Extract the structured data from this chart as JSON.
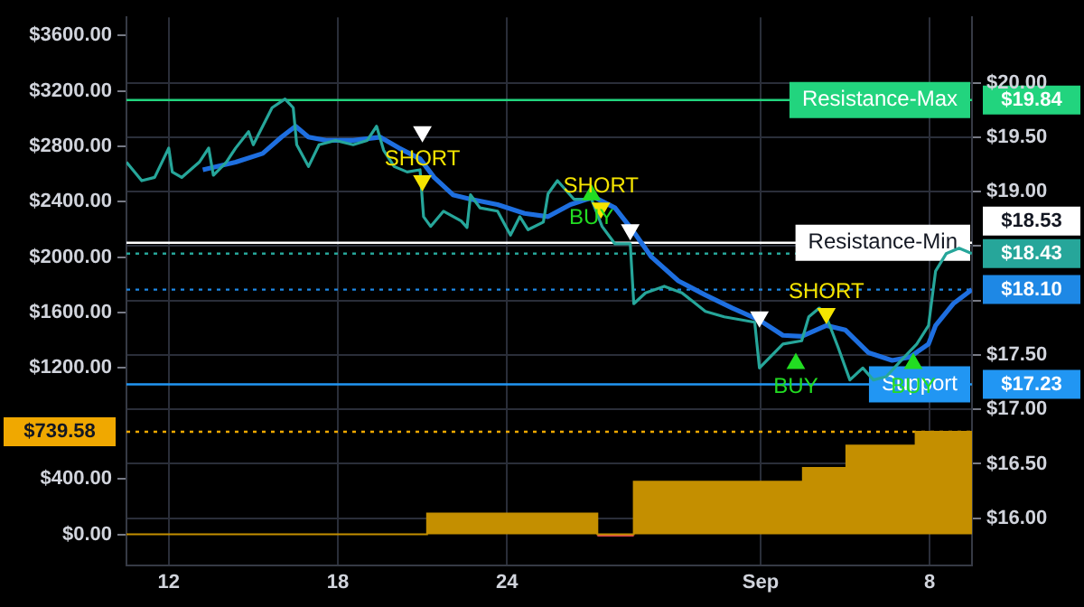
{
  "chart_data": {
    "type": "line",
    "xlim": [
      "--08-10T12:00",
      "--09-09T12:00"
    ],
    "xticks": [
      {
        "value": "--08-12",
        "label": "12"
      },
      {
        "value": "--08-18",
        "label": "18"
      },
      {
        "value": "--08-24",
        "label": "24"
      },
      {
        "value": "--09-02",
        "label": "Sep"
      },
      {
        "value": "--09-08",
        "label": "8"
      }
    ],
    "ylim": [
      -222,
      3730
    ],
    "yticks": [
      {
        "value": 0,
        "label": "$0.00"
      },
      {
        "value": 400,
        "label": "$400.00"
      },
      {
        "value": 1200,
        "label": "$1200.00"
      },
      {
        "value": 1600,
        "label": "$1600.00"
      },
      {
        "value": 2000,
        "label": "$2000.00"
      },
      {
        "value": 2400,
        "label": "$2400.00"
      },
      {
        "value": 2800,
        "label": "$2800.00"
      },
      {
        "value": 3200,
        "label": "$3200.00"
      },
      {
        "value": 3600,
        "label": "$3600.00"
      }
    ],
    "y2lim": [
      15.57,
      20.6
    ],
    "y2ticks": [
      {
        "value": 16,
        "label": "$16.00"
      },
      {
        "value": 16.5,
        "label": "$16.50"
      },
      {
        "value": 17,
        "label": "$17.00"
      },
      {
        "value": 17.5,
        "label": "$17.50"
      },
      {
        "value": 18,
        "label": null
      },
      {
        "value": 18.5,
        "label": null
      },
      {
        "value": 19,
        "label": "$19.00"
      },
      {
        "value": 19.5,
        "label": "$19.50"
      },
      {
        "value": 20,
        "label": "$20.00"
      }
    ],
    "grid": true,
    "legend": false,
    "ref_lines": [
      {
        "axis": "y2",
        "value": 19.84,
        "label": "$19.84",
        "color": "#22d47e"
      },
      {
        "axis": "y2",
        "value": 18.53,
        "label": "$18.53",
        "color": "#ffffff"
      },
      {
        "axis": "y2",
        "value": 18.43,
        "label": "$18.43",
        "color": "#26a69a",
        "line_style": "dotted"
      },
      {
        "axis": "y2",
        "value": 18.1,
        "label": "$18.10",
        "color": "#1e88e5",
        "line_style": "dotted"
      },
      {
        "axis": "y2",
        "value": 17.23,
        "label": "$17.23",
        "color": "#2196f3"
      },
      {
        "axis": "y",
        "value": 739.58,
        "label": "$739.58",
        "color": "#f0a800",
        "line_style": "dotted"
      }
    ],
    "annotations": [
      "Resistance-Max",
      "Resistance-Min",
      "Support"
    ],
    "series": [
      {
        "type": "area",
        "color": "#c48f00",
        "x": [
          "--08-10T12:00",
          "--08-21T04:00",
          "--08-21T04:00",
          "--08-27T05:00",
          "--08-27T05:00",
          "--08-28T12:00",
          "--08-28T12:00",
          "--09-03T12:00",
          "--09-03T12:00",
          "--09-05T01:00",
          "--09-05T01:00",
          "--09-07T12:00",
          "--09-07T12:00",
          "--09-09T12:00"
        ],
        "values": [
          0,
          0,
          150,
          150,
          0,
          0,
          380,
          380,
          480,
          480,
          640,
          640,
          740,
          740
        ]
      },
      {
        "type": "area",
        "color": "#e0474c",
        "x": [
          "--08-27T05:00",
          "--08-28T12:00"
        ],
        "values": [
          -10,
          -10
        ]
      },
      {
        "axis": "y2",
        "color": "#26a69a",
        "x": [
          "--08-10T12:00",
          "--08-11T01:00",
          "--08-11T12:00",
          "--08-12T00:00",
          "--08-12T03:00",
          "--08-12T11:00",
          "--08-13T02:00",
          "--08-13T10:00",
          "--08-13T14:00",
          "--08-14T01:00",
          "--08-14T09:00",
          "--08-14T20:00",
          "--08-15T00:00",
          "--08-15T08:00",
          "--08-15T16:00",
          "--08-16T03:00",
          "--08-16T10:00",
          "--08-16T13:00",
          "--08-16T23:00",
          "--08-17T08:00",
          "--08-17T22:00",
          "--08-18T13:00",
          "--08-19T01:00",
          "--08-19T09:00",
          "--08-19T15:00",
          "--08-20T00:00",
          "--08-20T11:00",
          "--08-20T22:00",
          "--08-21T01:00",
          "--08-21T07:00",
          "--08-21T18:00",
          "--08-22T09:00",
          "--08-22T14:00",
          "--08-22T17:00",
          "--08-23T01:00",
          "--08-23T16:00",
          "--08-24T03:00",
          "--08-24T11:00",
          "--08-24T18:00",
          "--08-25T07:00",
          "--08-25T11:00",
          "--08-25T19:00",
          "--08-26T09:00",
          "--08-27T00:00",
          "--08-27T09:00",
          "--08-27T20:00",
          "--08-28T09:00",
          "--08-28T12:00",
          "--08-28T22:00",
          "--08-29T14:00",
          "--08-30T05:00",
          "--08-31T01:00",
          "--08-31T17:00",
          "--09-01T19:00",
          "--09-01T23:00",
          "--09-02T19:00",
          "--09-03T11:00",
          "--09-03T17:00",
          "--09-04T02:00",
          "--09-04T08:00",
          "--09-04T18:00",
          "--09-05T04:00",
          "--09-05T15:00",
          "--09-06T00:00",
          "--09-06T11:00",
          "--09-06T22:00",
          "--09-07T13:00",
          "--09-07T23:00",
          "--09-08T05:00",
          "--09-08T14:00",
          "--09-09T01:00",
          "--09-09T12:00"
        ],
        "values": [
          19.27,
          19.1,
          19.13,
          19.4,
          19.18,
          19.13,
          19.27,
          19.4,
          19.15,
          19.27,
          19.4,
          19.55,
          19.43,
          19.6,
          19.77,
          19.85,
          19.77,
          19.43,
          19.23,
          19.43,
          19.47,
          19.43,
          19.47,
          19.6,
          19.38,
          19.23,
          19.18,
          19.2,
          18.77,
          18.68,
          18.82,
          18.73,
          18.67,
          18.97,
          18.85,
          18.82,
          18.6,
          18.77,
          18.65,
          18.72,
          18.98,
          19.1,
          18.93,
          18.93,
          18.68,
          18.52,
          18.52,
          17.97,
          18.07,
          18.13,
          18.07,
          17.9,
          17.85,
          17.8,
          17.38,
          17.6,
          17.63,
          17.85,
          17.93,
          17.85,
          17.57,
          17.27,
          17.38,
          17.27,
          17.3,
          17.43,
          17.6,
          17.77,
          18.27,
          18.43,
          18.48,
          18.43
        ]
      },
      {
        "axis": "y2",
        "color": "#1e6fe0",
        "x": [
          "--08-13T05:00",
          "--08-14T09:00",
          "--08-15T08:00",
          "--08-16T00:00",
          "--08-16T12:00",
          "--08-16T23:00",
          "--08-17T14:00",
          "--08-18T13:00",
          "--08-19T12:00",
          "--08-20T04:00",
          "--08-20T22:00",
          "--08-21T10:00",
          "--08-22T02:00",
          "--08-22T17:00",
          "--08-23T16:00",
          "--08-24T15:00",
          "--08-25T11:00",
          "--08-26T06:00",
          "--08-27T02:00",
          "--08-27T20:00",
          "--08-28T12:00",
          "--08-29T03:00",
          "--08-30T02:00",
          "--08-31T01:00",
          "--09-01T00:00",
          "--09-01T23:00",
          "--09-02T19:00",
          "--09-03T11:00",
          "--09-04T08:00",
          "--09-05T00:00",
          "--09-05T20:00",
          "--09-06T16:00",
          "--09-07T07:00",
          "--09-07T23:00",
          "--09-08T05:00",
          "--09-08T20:00",
          "--09-09T12:00"
        ],
        "values": [
          19.2,
          19.27,
          19.35,
          19.5,
          19.6,
          19.5,
          19.47,
          19.47,
          19.5,
          19.4,
          19.3,
          19.13,
          18.97,
          18.93,
          18.88,
          18.8,
          18.77,
          18.88,
          18.95,
          18.85,
          18.63,
          18.4,
          18.18,
          18.05,
          17.93,
          17.82,
          17.68,
          17.67,
          17.77,
          17.73,
          17.52,
          17.45,
          17.48,
          17.6,
          17.77,
          17.97,
          18.1
        ]
      },
      {
        "type": "scatter",
        "axis": "y2",
        "name": "SHORT",
        "color": "#f5e400",
        "marker": "triangle",
        "x": [
          "--08-21T00:00",
          "--08-27T08:00",
          "--09-04T08:00"
        ],
        "values": [
          19.1,
          18.85,
          17.88
        ]
      },
      {
        "type": "scatter",
        "axis": "y2",
        "name": "BUY",
        "color": "#22dd22",
        "marker": "triangle",
        "x": [
          "--08-27T00:00",
          "--09-03T06:00",
          "--09-07T10:00"
        ],
        "values": [
          18.97,
          17.42,
          17.42
        ]
      },
      {
        "type": "scatter",
        "axis": "y2",
        "color": "#ffffff",
        "marker": "triangle",
        "x": [
          "--08-21T00:00",
          "--08-28T09:00",
          "--09-01T23:00"
        ],
        "values": [
          19.55,
          18.65,
          17.85
        ]
      }
    ]
  }
}
